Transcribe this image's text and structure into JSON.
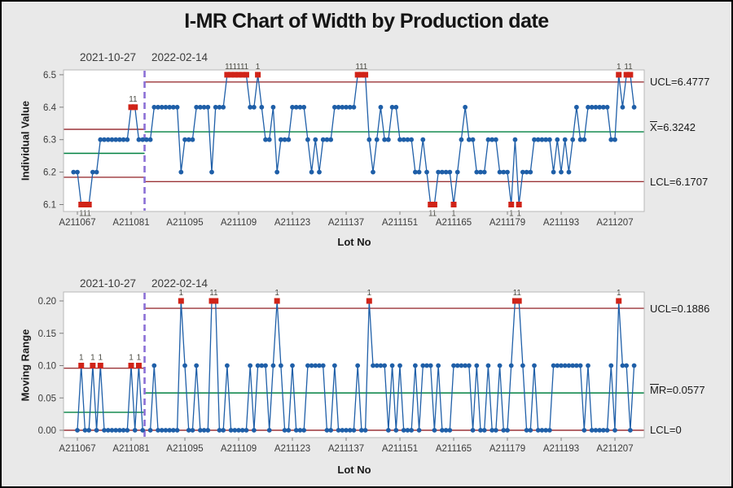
{
  "title": "I-MR Chart of Width by Production date",
  "charts": {
    "individuals": {
      "y_title": "Individual Value",
      "x_title": "Lot No",
      "stage_labels": [
        "2021-10-27",
        "2022-02-14"
      ],
      "ucl_label": "UCL=6.4777",
      "mean_bar": "X",
      "mean_rest": "=6.3242",
      "lcl_label": "LCL=6.1707"
    },
    "moving_range": {
      "y_title": "Moving Range",
      "x_title": "Lot No",
      "stage_labels": [
        "2021-10-27",
        "2022-02-14"
      ],
      "ucl_label": "UCL=0.1886",
      "mean_bar": "M",
      "mean_rest": "R=0.0577",
      "lcl_label": "LCL=0"
    }
  },
  "colors": {
    "series_blue": "#1f5fa8",
    "fail_red": "#d02318",
    "limit_red": "#9b3438",
    "center_green": "#008040",
    "divider_purple": "#8b6fd6",
    "plot_border": "#b8b8b8",
    "tick_gray": "#7f7f7f",
    "tick_text": "#3c3c3c",
    "fail_label": "#4a4a42",
    "plot_bg": "#ffffff"
  },
  "chart_data": [
    {
      "type": "line",
      "name": "Individual Value (I chart)",
      "ylabel": "Individual Value",
      "xlabel": "Lot No",
      "ylim": [
        6.08,
        6.53
      ],
      "y_ticks": [
        {
          "v": 6.1,
          "label": "6.1"
        },
        {
          "v": 6.2,
          "label": "6.2"
        },
        {
          "v": 6.3,
          "label": "6.3"
        },
        {
          "v": 6.4,
          "label": "6.4"
        },
        {
          "v": 6.5,
          "label": "6.5"
        }
      ],
      "x_ticks": [
        {
          "lot": 67,
          "label": "A211067"
        },
        {
          "lot": 81,
          "label": "A211081"
        },
        {
          "lot": 95,
          "label": "A211095"
        },
        {
          "lot": 109,
          "label": "A211109"
        },
        {
          "lot": 123,
          "label": "A211123"
        },
        {
          "lot": 137,
          "label": "A211137"
        },
        {
          "lot": 151,
          "label": "A211151"
        },
        {
          "lot": 165,
          "label": "A211165"
        },
        {
          "lot": 179,
          "label": "A211179"
        },
        {
          "lot": 193,
          "label": "A211193"
        },
        {
          "lot": 207,
          "label": "A211207"
        }
      ],
      "lot_prefix": "A211",
      "start_lot": 66,
      "stages": [
        {
          "label": "2021-10-27",
          "start_lot": 66,
          "end_lot": 84,
          "ucl": 6.3318,
          "center": 6.2579,
          "lcl": 6.184
        },
        {
          "label": "2022-02-14",
          "start_lot": 85,
          "end_lot": 212,
          "ucl": 6.4777,
          "center": 6.3242,
          "lcl": 6.1707
        }
      ],
      "values": [
        6.2,
        6.2,
        6.1,
        6.1,
        6.1,
        6.2,
        6.2,
        6.3,
        6.3,
        6.3,
        6.3,
        6.3,
        6.3,
        6.3,
        6.3,
        6.4,
        6.4,
        6.3,
        6.3,
        6.3,
        6.3,
        6.4,
        6.4,
        6.4,
        6.4,
        6.4,
        6.4,
        6.4,
        6.2,
        6.3,
        6.3,
        6.3,
        6.4,
        6.4,
        6.4,
        6.4,
        6.2,
        6.4,
        6.4,
        6.4,
        6.5,
        6.5,
        6.5,
        6.5,
        6.5,
        6.5,
        6.4,
        6.4,
        6.5,
        6.4,
        6.3,
        6.3,
        6.4,
        6.2,
        6.3,
        6.3,
        6.3,
        6.4,
        6.4,
        6.4,
        6.4,
        6.3,
        6.2,
        6.3,
        6.2,
        6.3,
        6.3,
        6.3,
        6.4,
        6.4,
        6.4,
        6.4,
        6.4,
        6.4,
        6.5,
        6.5,
        6.5,
        6.3,
        6.2,
        6.3,
        6.4,
        6.3,
        6.3,
        6.4,
        6.4,
        6.3,
        6.3,
        6.3,
        6.3,
        6.2,
        6.2,
        6.3,
        6.2,
        6.1,
        6.1,
        6.2,
        6.2,
        6.2,
        6.2,
        6.1,
        6.2,
        6.3,
        6.4,
        6.3,
        6.3,
        6.2,
        6.2,
        6.2,
        6.3,
        6.3,
        6.3,
        6.2,
        6.2,
        6.2,
        6.1,
        6.3,
        6.1,
        6.2,
        6.2,
        6.2,
        6.3,
        6.3,
        6.3,
        6.3,
        6.3,
        6.2,
        6.3,
        6.2,
        6.3,
        6.2,
        6.3,
        6.4,
        6.3,
        6.3,
        6.4,
        6.4,
        6.4,
        6.4,
        6.4,
        6.4,
        6.3,
        6.3,
        6.5,
        6.4,
        6.5,
        6.5,
        6.4
      ],
      "fail_lots": [
        68,
        69,
        70,
        81,
        82,
        106,
        107,
        108,
        109,
        110,
        111,
        114,
        140,
        141,
        142,
        159,
        160,
        165,
        180,
        182,
        208,
        210,
        211
      ],
      "fail_label": "1"
    },
    {
      "type": "line",
      "name": "Moving Range (MR chart)",
      "ylabel": "Moving Range",
      "xlabel": "Lot No",
      "ylim": [
        -0.012,
        0.215
      ],
      "y_ticks": [
        {
          "v": 0.0,
          "label": "0.00"
        },
        {
          "v": 0.05,
          "label": "0.05"
        },
        {
          "v": 0.1,
          "label": "0.10"
        },
        {
          "v": 0.15,
          "label": "0.15"
        },
        {
          "v": 0.2,
          "label": "0.20"
        }
      ],
      "x_ticks": [
        {
          "lot": 67,
          "label": "A211067"
        },
        {
          "lot": 81,
          "label": "A211081"
        },
        {
          "lot": 95,
          "label": "A211095"
        },
        {
          "lot": 109,
          "label": "A211109"
        },
        {
          "lot": 123,
          "label": "A211123"
        },
        {
          "lot": 137,
          "label": "A211137"
        },
        {
          "lot": 151,
          "label": "A211151"
        },
        {
          "lot": 165,
          "label": "A211165"
        },
        {
          "lot": 179,
          "label": "A211179"
        },
        {
          "lot": 193,
          "label": "A211193"
        },
        {
          "lot": 207,
          "label": "A211207"
        }
      ],
      "lot_prefix": "A211",
      "start_lot": 66,
      "stages": [
        {
          "label": "2021-10-27",
          "start_lot": 66,
          "end_lot": 84,
          "ucl": 0.096,
          "center": 0.0278,
          "lcl": 0
        },
        {
          "label": "2022-02-14",
          "start_lot": 85,
          "end_lot": 212,
          "ucl": 0.1886,
          "center": 0.0577,
          "lcl": 0
        }
      ],
      "values": [
        null,
        0,
        0.1,
        0,
        0,
        0.1,
        0,
        0.1,
        0,
        0,
        0,
        0,
        0,
        0,
        0,
        0.1,
        0,
        0.1,
        0,
        null,
        0,
        0.1,
        0,
        0,
        0,
        0,
        0,
        0,
        0.2,
        0.1,
        0,
        0,
        0.1,
        0,
        0,
        0,
        0.2,
        0.2,
        0,
        0,
        0.1,
        0,
        0,
        0,
        0,
        0,
        0.1,
        0,
        0.1,
        0.1,
        0.1,
        0,
        0.1,
        0.2,
        0.1,
        0,
        0,
        0.1,
        0,
        0,
        0,
        0.1,
        0.1,
        0.1,
        0.1,
        0.1,
        0,
        0,
        0.1,
        0,
        0,
        0,
        0,
        0,
        0.1,
        0,
        0,
        0.2,
        0.1,
        0.1,
        0.1,
        0.1,
        0,
        0.1,
        0,
        0.1,
        0,
        0,
        0,
        0.1,
        0,
        0.1,
        0.1,
        0.1,
        0,
        0.1,
        0,
        0,
        0,
        0.1,
        0.1,
        0.1,
        0.1,
        0.1,
        0,
        0.1,
        0,
        0,
        0.1,
        0,
        0,
        0.1,
        0,
        0,
        0.1,
        0.2,
        0.2,
        0.1,
        0,
        0,
        0.1,
        0,
        0,
        0,
        0,
        0.1,
        0.1,
        0.1,
        0.1,
        0.1,
        0.1,
        0.1,
        0.1,
        0,
        0.1,
        0,
        0,
        0,
        0,
        0,
        0.1,
        0,
        0.2,
        0.1,
        0.1,
        0,
        0.1
      ],
      "fail_lots": [
        68,
        71,
        73,
        81,
        83,
        94,
        102,
        103,
        119,
        143,
        181,
        182,
        208
      ],
      "fail_label": "1"
    }
  ]
}
